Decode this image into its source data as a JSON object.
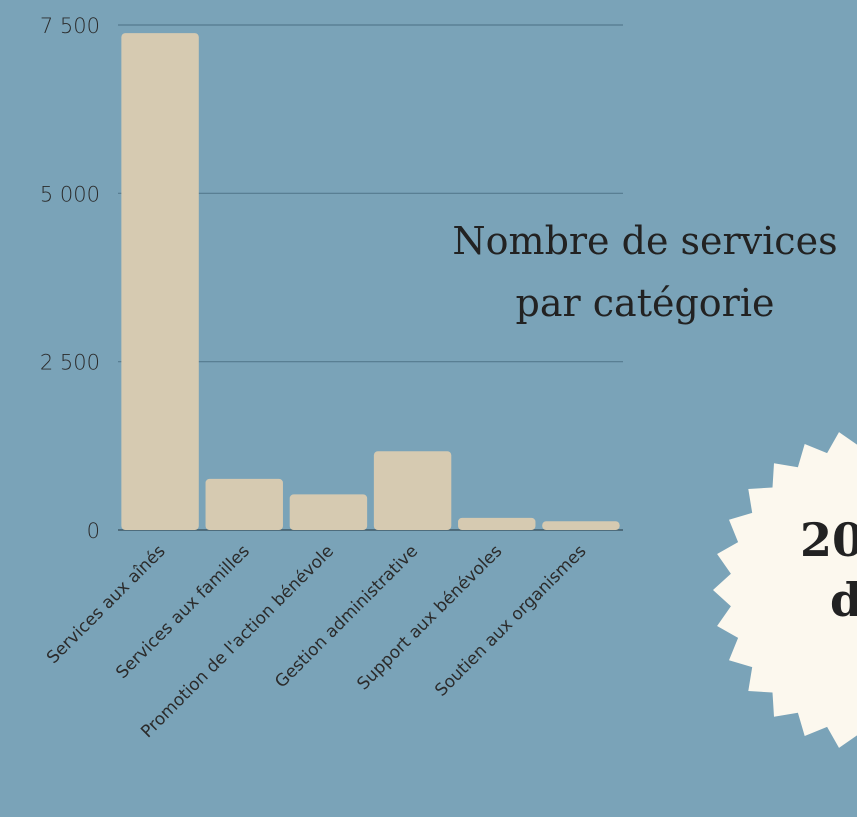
{
  "chart_data": {
    "type": "bar",
    "title": [
      "Nombre de services",
      "par catégorie"
    ],
    "categories": [
      "Services aux aînés",
      "Services aux familles",
      "Promotion de l'action bénévole",
      "Gestion administrative",
      "Support aux bénévoles",
      "Soutien aux organismes"
    ],
    "values": [
      7380,
      760,
      530,
      1170,
      180,
      130
    ],
    "color": "#d6cab1",
    "ylim": [
      0,
      7500
    ],
    "yticks": [
      0,
      {
        "value": 2500,
        "label": "2 500"
      },
      {
        "value": 5000,
        "label": "5 000"
      },
      {
        "value": 7500,
        "label": "7 500"
      }
    ],
    "grid": true
  },
  "badge": {
    "lines": [
      "20",
      "d"
    ]
  }
}
